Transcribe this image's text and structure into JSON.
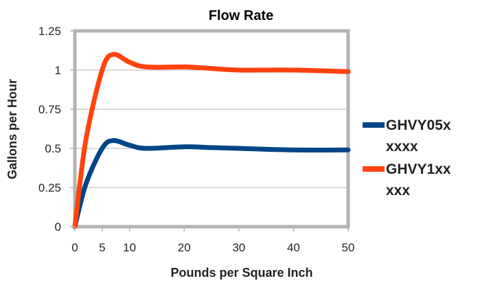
{
  "chart_data": {
    "type": "line",
    "title": "Flow Rate",
    "xlabel": "Pounds per Square Inch",
    "ylabel": "Gallons per Hour",
    "xlim": [
      0,
      50
    ],
    "ylim": [
      0,
      1.25
    ],
    "x_ticks": [
      0,
      5,
      10,
      20,
      30,
      40,
      50
    ],
    "x_tick_labels": [
      "0",
      "5",
      "10",
      "20",
      "30",
      "40",
      "50"
    ],
    "y_ticks": [
      0,
      0.25,
      0.5,
      0.75,
      1,
      1.25
    ],
    "y_tick_labels": [
      "0",
      "0.25",
      "0.5",
      "0.75",
      "1",
      "1.25"
    ],
    "grid": "horizontal",
    "legend_position": "right",
    "series": [
      {
        "name": "GHVY05xxxxx",
        "legend_lines": [
          "GHVY05x",
          "xxxx"
        ],
        "color": "#004586",
        "x": [
          0,
          2,
          5,
          7,
          10,
          13,
          20,
          25,
          30,
          40,
          50
        ],
        "y": [
          0,
          0.27,
          0.5,
          0.55,
          0.52,
          0.5,
          0.51,
          0.505,
          0.5,
          0.49,
          0.49
        ]
      },
      {
        "name": "GHVY1xxxxx",
        "legend_lines": [
          "GHVY1xx",
          "xxx"
        ],
        "color": "#ff420e",
        "x": [
          0,
          2,
          5,
          7,
          10,
          13,
          20,
          25,
          30,
          40,
          50
        ],
        "y": [
          0,
          0.55,
          1.0,
          1.1,
          1.05,
          1.02,
          1.02,
          1.01,
          1.0,
          1.0,
          0.99
        ]
      }
    ]
  }
}
